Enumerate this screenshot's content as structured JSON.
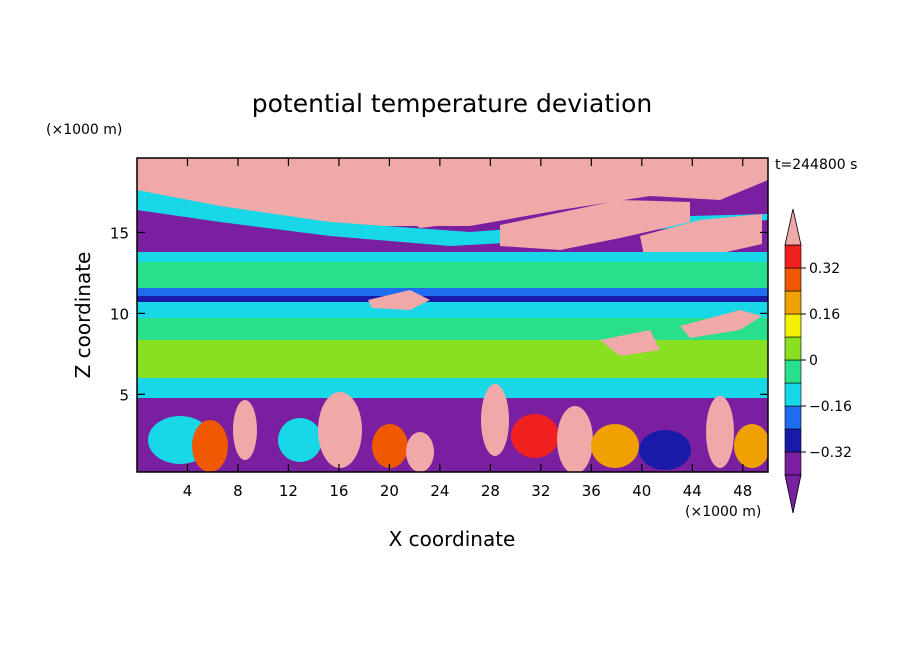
{
  "chart_data": {
    "type": "heatmap",
    "title": "potential temperature deviation",
    "xlabel": "X coordinate",
    "ylabel": "Z coordinate",
    "x_unit": "(×1000 m)",
    "y_unit": "(×1000 m)",
    "time_label": "t=244800 s",
    "xlim": [
      0,
      50
    ],
    "ylim": [
      0.2,
      19.6
    ],
    "x_ticks": [
      4,
      8,
      12,
      16,
      20,
      24,
      28,
      32,
      36,
      40,
      44,
      48
    ],
    "y_ticks": [
      5,
      10,
      15
    ],
    "grid": false,
    "colorbar": {
      "levels": [
        -0.4,
        -0.32,
        -0.24,
        -0.16,
        -0.08,
        0,
        0.08,
        0.16,
        0.24,
        0.32,
        0.4
      ],
      "tick_labels": [
        {
          "value": 0.32,
          "label": "0.32"
        },
        {
          "value": 0.16,
          "label": "0.16"
        },
        {
          "value": 0,
          "label": "0"
        },
        {
          "value": -0.16,
          "label": "−0.16"
        },
        {
          "value": -0.32,
          "label": "−0.32"
        }
      ],
      "colors": [
        "#7a1fa0",
        "#1a1aa8",
        "#1e6cf0",
        "#18d8e8",
        "#28e08c",
        "#88e020",
        "#f0f000",
        "#f0a000",
        "#f05800",
        "#f02020",
        "#f0a8a8"
      ],
      "extend": "both",
      "placement": "right"
    }
  }
}
